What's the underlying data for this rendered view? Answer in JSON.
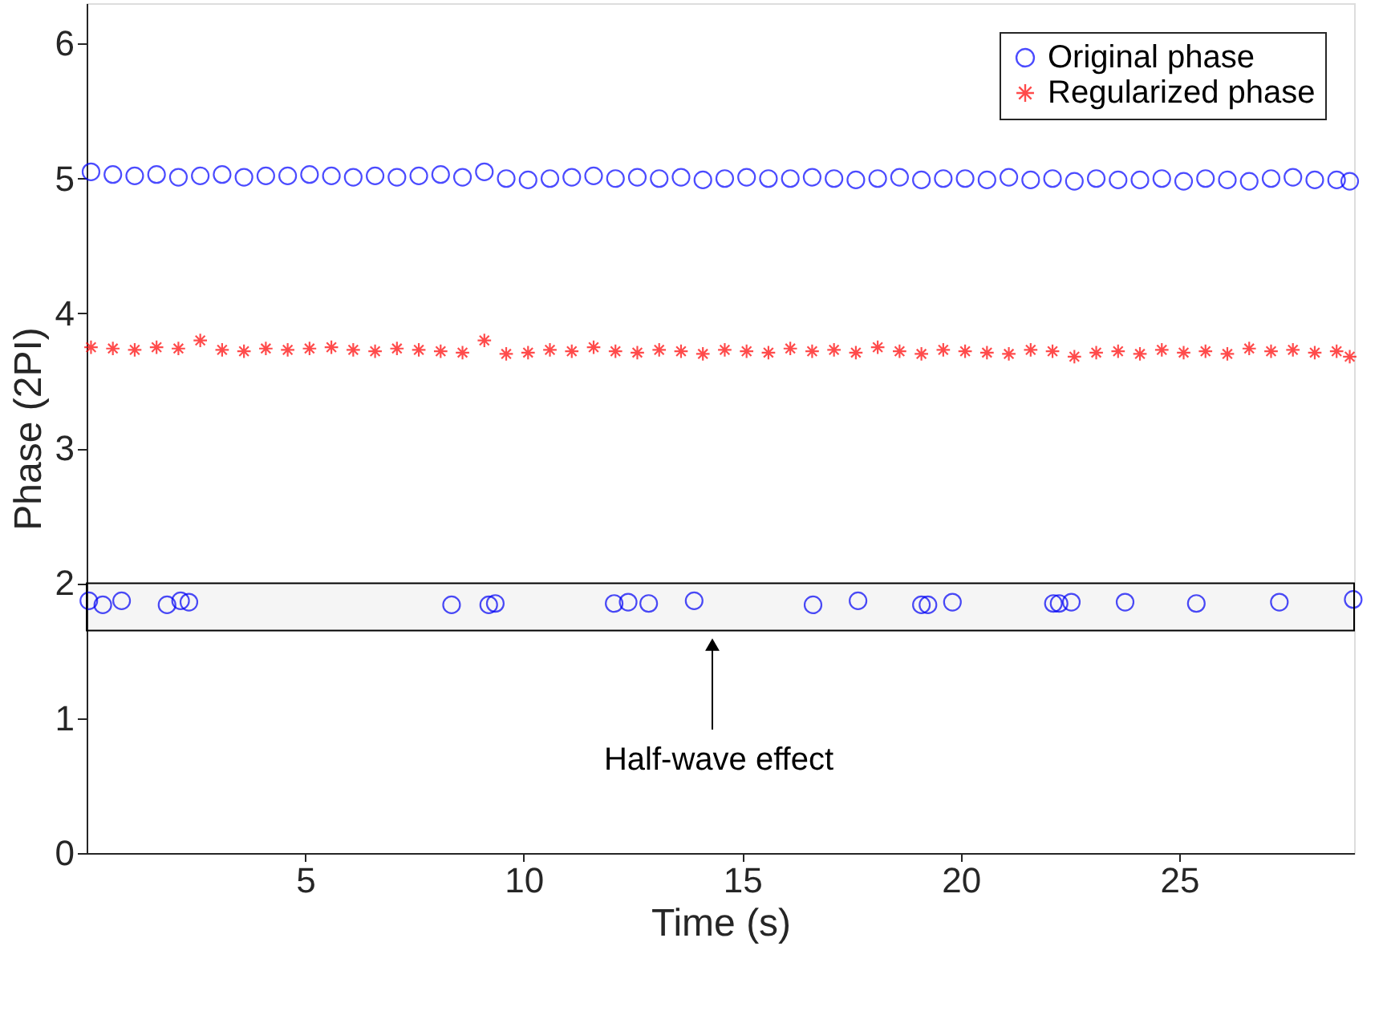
{
  "chart_data": {
    "type": "scatter",
    "xlabel": "Time (s)",
    "ylabel": "Phase (2PI)",
    "xlim": [
      0,
      29
    ],
    "ylim": [
      0,
      6.3
    ],
    "xticks": [
      5,
      10,
      15,
      20,
      25
    ],
    "yticks": [
      0,
      1,
      2,
      3,
      4,
      5,
      6
    ],
    "grid": false,
    "legend": "top right",
    "series": [
      {
        "name": "Original phase",
        "color": "#0000ff",
        "marker": "circle",
        "x": [
          0.1,
          0.6,
          1.1,
          1.6,
          2.1,
          2.6,
          3.1,
          3.6,
          4.1,
          4.6,
          5.1,
          5.6,
          6.1,
          6.6,
          7.1,
          7.6,
          8.1,
          8.6,
          9.1,
          9.6,
          10.1,
          10.6,
          11.1,
          11.6,
          12.1,
          12.6,
          13.1,
          13.6,
          14.1,
          14.6,
          15.1,
          15.6,
          16.1,
          16.6,
          17.1,
          17.6,
          18.1,
          18.6,
          19.1,
          19.6,
          20.1,
          20.6,
          21.1,
          21.6,
          22.1,
          22.6,
          23.1,
          23.6,
          24.1,
          24.6,
          25.1,
          25.6,
          26.1,
          26.6,
          27.1,
          27.6,
          28.1,
          28.6,
          28.9,
          0.05,
          0.37,
          0.8,
          1.84,
          2.15,
          2.34,
          8.35,
          9.2,
          9.35,
          12.07,
          12.39,
          12.86,
          13.9,
          16.62,
          17.65,
          19.1,
          19.25,
          19.81,
          22.12,
          22.25,
          22.53,
          23.76,
          25.39,
          27.29,
          28.98
        ],
        "values": [
          5.05,
          5.03,
          5.02,
          5.03,
          5.01,
          5.02,
          5.03,
          5.01,
          5.02,
          5.02,
          5.03,
          5.02,
          5.01,
          5.02,
          5.01,
          5.02,
          5.03,
          5.01,
          5.05,
          5.0,
          4.99,
          5.0,
          5.01,
          5.02,
          5.0,
          5.01,
          5.0,
          5.01,
          4.99,
          5.0,
          5.01,
          5.0,
          5.0,
          5.01,
          5.0,
          4.99,
          5.0,
          5.01,
          4.99,
          5.0,
          5.0,
          4.99,
          5.01,
          4.99,
          5.0,
          4.98,
          5.0,
          4.99,
          4.99,
          5.0,
          4.98,
          5.0,
          4.99,
          4.98,
          5.0,
          5.01,
          4.99,
          4.99,
          4.98,
          1.87,
          1.84,
          1.87,
          1.84,
          1.87,
          1.86,
          1.84,
          1.84,
          1.85,
          1.85,
          1.86,
          1.85,
          1.87,
          1.84,
          1.87,
          1.84,
          1.84,
          1.86,
          1.85,
          1.85,
          1.86,
          1.86,
          1.85,
          1.86,
          1.88
        ]
      },
      {
        "name": "Regularized phase",
        "color": "#ff0000",
        "marker": "cross",
        "x": [
          0.1,
          0.6,
          1.1,
          1.6,
          2.1,
          2.6,
          3.1,
          3.6,
          4.1,
          4.6,
          5.1,
          5.6,
          6.1,
          6.6,
          7.1,
          7.6,
          8.1,
          8.6,
          9.1,
          9.6,
          10.1,
          10.6,
          11.1,
          11.6,
          12.1,
          12.6,
          13.1,
          13.6,
          14.1,
          14.6,
          15.1,
          15.6,
          16.1,
          16.6,
          17.1,
          17.6,
          18.1,
          18.6,
          19.1,
          19.6,
          20.1,
          20.6,
          21.1,
          21.6,
          22.1,
          22.6,
          23.1,
          23.6,
          24.1,
          24.6,
          25.1,
          25.6,
          26.1,
          26.6,
          27.1,
          27.6,
          28.1,
          28.6,
          28.9
        ],
        "values": [
          3.75,
          3.74,
          3.73,
          3.75,
          3.74,
          3.8,
          3.73,
          3.72,
          3.74,
          3.73,
          3.74,
          3.75,
          3.73,
          3.72,
          3.74,
          3.73,
          3.72,
          3.71,
          3.8,
          3.7,
          3.71,
          3.73,
          3.72,
          3.75,
          3.72,
          3.71,
          3.73,
          3.72,
          3.7,
          3.73,
          3.72,
          3.71,
          3.74,
          3.72,
          3.73,
          3.71,
          3.75,
          3.72,
          3.7,
          3.73,
          3.72,
          3.71,
          3.7,
          3.73,
          3.72,
          3.68,
          3.71,
          3.72,
          3.7,
          3.73,
          3.71,
          3.72,
          3.7,
          3.74,
          3.72,
          3.73,
          3.71,
          3.72,
          3.68
        ]
      }
    ],
    "bands": [
      {
        "axis": "y",
        "from": 1.65,
        "to": 2.0,
        "label": null,
        "color": "#000000"
      }
    ],
    "annotations": [
      "Half-wave effect"
    ]
  }
}
